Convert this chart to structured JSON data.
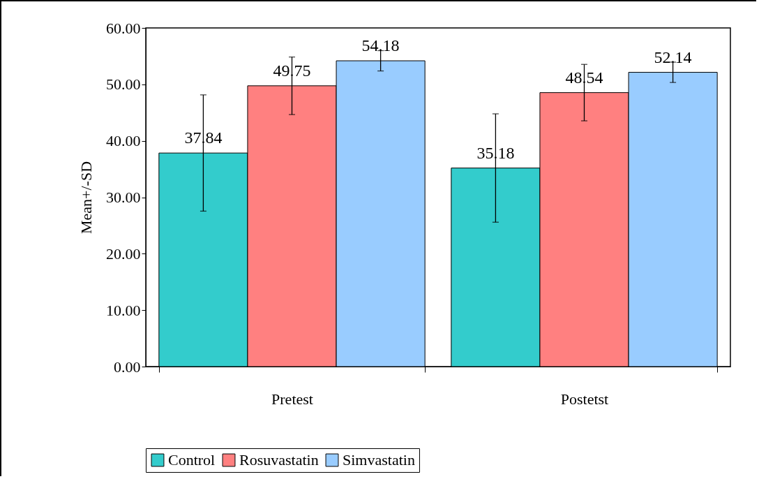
{
  "chart_data": {
    "type": "bar",
    "ylabel": "Mean+/-SD",
    "categories": [
      "Pretest",
      "Postetst"
    ],
    "series": [
      {
        "name": "Control",
        "color": "#33cccc",
        "values": [
          37.84,
          35.18
        ],
        "errors": [
          10.3,
          9.6
        ]
      },
      {
        "name": "Rosuvastatin",
        "color": "#ff8080",
        "values": [
          49.75,
          48.54
        ],
        "errors": [
          5.1,
          5.0
        ]
      },
      {
        "name": "Simvastatin",
        "color": "#99ccff",
        "values": [
          54.18,
          52.14
        ],
        "errors": [
          1.8,
          1.8
        ]
      }
    ],
    "ylim": [
      0,
      60
    ],
    "yticks": [
      {
        "value": 0,
        "label": "0.00"
      },
      {
        "value": 10,
        "label": "10.00"
      },
      {
        "value": 20,
        "label": "20.00"
      },
      {
        "value": 30,
        "label": "30.00"
      },
      {
        "value": 40,
        "label": "40.00"
      },
      {
        "value": 50,
        "label": "50.00"
      },
      {
        "value": 60,
        "label": "60.00"
      }
    ],
    "data_labels": true,
    "grid": false,
    "legend": "bottom"
  }
}
